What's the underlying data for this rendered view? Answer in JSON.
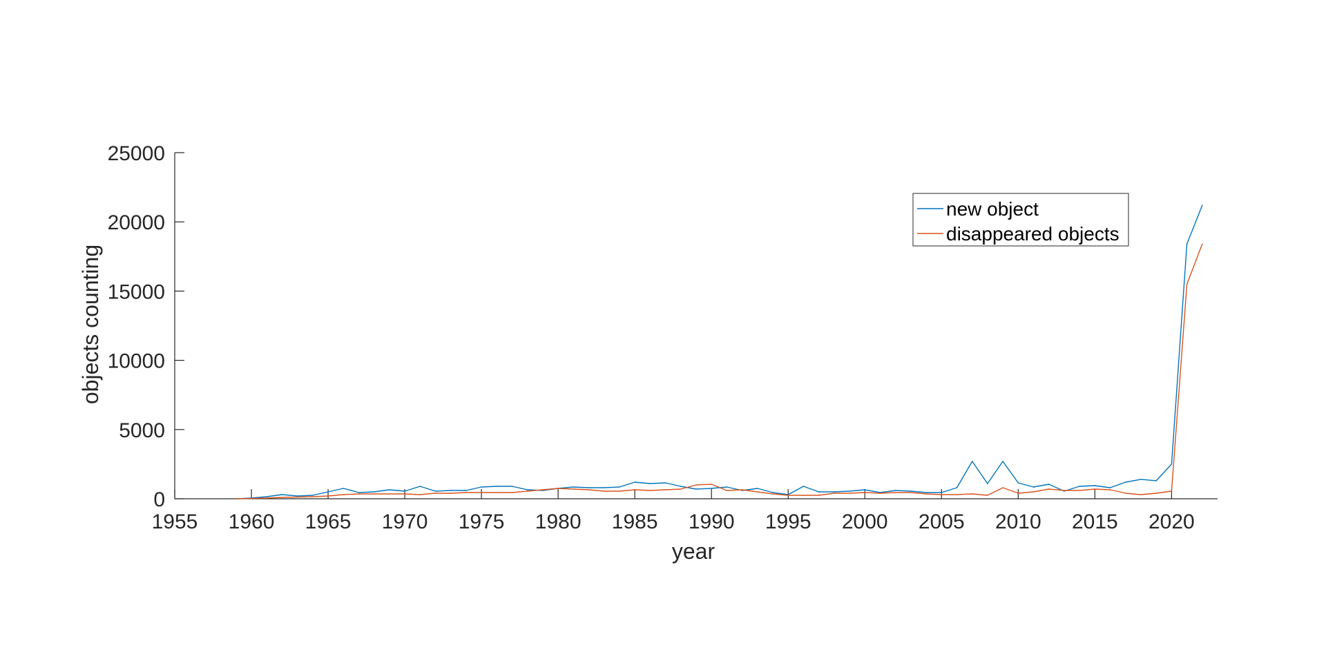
{
  "chart_data": {
    "type": "line",
    "title": "",
    "xlabel": "year",
    "ylabel": "objects counting",
    "xlim": [
      1955,
      2023
    ],
    "ylim": [
      0,
      25000
    ],
    "xticks": [
      "1955",
      "1960",
      "1965",
      "1970",
      "1975",
      "1980",
      "1985",
      "1990",
      "1995",
      "2000",
      "2005",
      "2010",
      "2015",
      "2020"
    ],
    "yticks": [
      "0",
      "5000",
      "10000",
      "15000",
      "20000",
      "25000"
    ],
    "grid": false,
    "legend_position": "top-right",
    "x": [
      1959,
      1960,
      1961,
      1962,
      1963,
      1964,
      1965,
      1966,
      1967,
      1968,
      1969,
      1970,
      1971,
      1972,
      1973,
      1974,
      1975,
      1976,
      1977,
      1978,
      1979,
      1980,
      1981,
      1982,
      1983,
      1984,
      1985,
      1986,
      1987,
      1988,
      1989,
      1990,
      1991,
      1992,
      1993,
      1994,
      1995,
      1996,
      1997,
      1998,
      1999,
      2000,
      2001,
      2002,
      2003,
      2004,
      2005,
      2006,
      2007,
      2008,
      2009,
      2010,
      2011,
      2012,
      2013,
      2014,
      2015,
      2016,
      2017,
      2018,
      2019,
      2020,
      2021,
      2022
    ],
    "series": [
      {
        "name": "new object",
        "color": "#0072BD",
        "values": [
          0,
          50,
          150,
          300,
          200,
          250,
          500,
          750,
          450,
          500,
          650,
          550,
          900,
          550,
          600,
          600,
          850,
          900,
          900,
          650,
          600,
          750,
          850,
          800,
          800,
          850,
          1200,
          1100,
          1150,
          900,
          700,
          750,
          850,
          600,
          750,
          450,
          300,
          900,
          500,
          500,
          550,
          650,
          450,
          600,
          550,
          450,
          450,
          800,
          2700,
          1100,
          2700,
          1150,
          850,
          1050,
          550,
          900,
          950,
          800,
          1200,
          1400,
          1300,
          2500,
          18400,
          21200
        ]
      },
      {
        "name": "disappeared objects",
        "color": "#D95319",
        "values": [
          0,
          20,
          50,
          100,
          120,
          150,
          200,
          300,
          350,
          350,
          350,
          350,
          300,
          400,
          400,
          450,
          450,
          450,
          450,
          550,
          650,
          750,
          700,
          650,
          550,
          550,
          650,
          600,
          650,
          700,
          1000,
          1050,
          600,
          650,
          500,
          350,
          250,
          250,
          250,
          400,
          400,
          450,
          400,
          450,
          450,
          350,
          300,
          300,
          350,
          250,
          800,
          400,
          500,
          700,
          600,
          600,
          700,
          650,
          400,
          300,
          400,
          550,
          15500,
          18400
        ]
      }
    ]
  }
}
